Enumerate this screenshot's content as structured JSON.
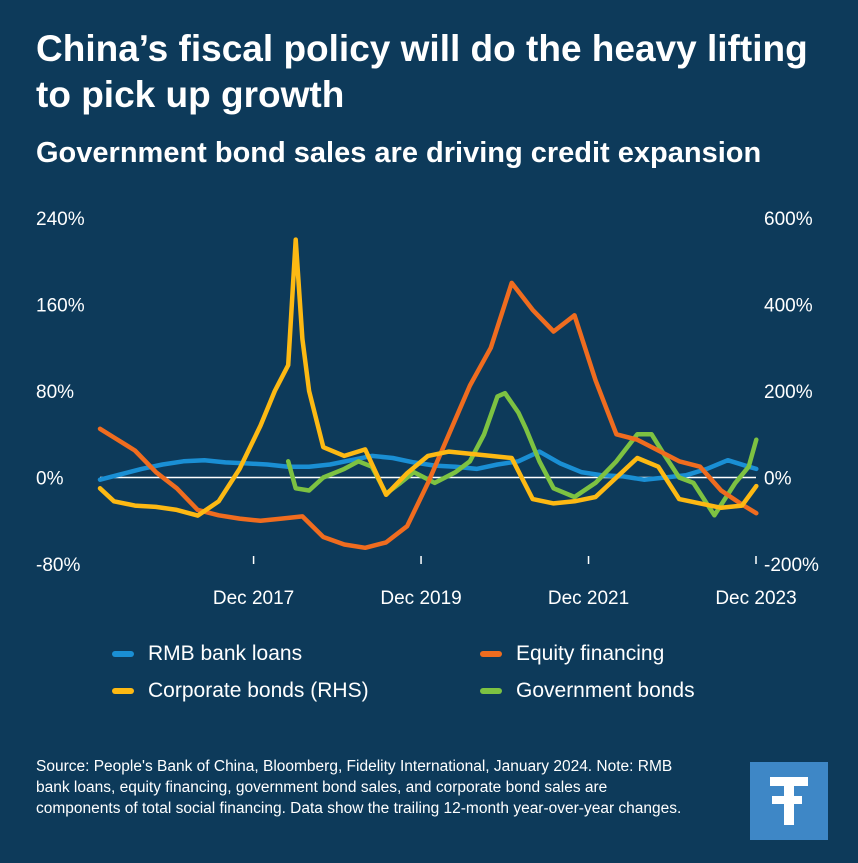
{
  "header": {
    "title": "China’s fiscal policy will do the heavy lifting to pick up growth",
    "subtitle": "Government bond sales are driving credit expansion"
  },
  "footer": {
    "source": "Source: People's Bank of China, Bloomberg, Fidelity International, January 2024. Note: RMB bank loans, equity financing, government bond sales, and corporate bond sales are components of total social financing. Data show the trailing 12-month year-over-year changes."
  },
  "logo": {
    "icon": "fidelity-f-icon",
    "color": "#3e87c6"
  },
  "chart_data": {
    "type": "line",
    "x_tick_labels": [
      "Dec 2017",
      "Dec 2019",
      "Dec 2021",
      "Dec 2023"
    ],
    "x_tick_dates": [
      2017.917,
      2019.917,
      2021.917,
      2023.917
    ],
    "x_range": [
      2016.083,
      2023.917
    ],
    "y_left": {
      "ticks": [
        240,
        160,
        80,
        0,
        -80
      ],
      "tick_labels": [
        "240%",
        "160%",
        "80%",
        "0%",
        "-80%"
      ],
      "ylim": [
        -80,
        240
      ]
    },
    "y_right": {
      "ticks": [
        600,
        400,
        200,
        0,
        -200
      ],
      "tick_labels": [
        "600%",
        "400%",
        "200%",
        "0%",
        "-200%"
      ],
      "ylim": [
        -200,
        600
      ]
    },
    "zero_line": true,
    "series": [
      {
        "name": "RMB bank loans",
        "axis": "left",
        "color": "#1a8fd4",
        "x": [
          2016.083,
          2016.33,
          2016.58,
          2016.83,
          2017.08,
          2017.33,
          2017.58,
          2017.83,
          2018.08,
          2018.33,
          2018.58,
          2018.83,
          2019.08,
          2019.33,
          2019.58,
          2019.83,
          2020.08,
          2020.33,
          2020.58,
          2020.83,
          2021.08,
          2021.33,
          2021.58,
          2021.83,
          2022.08,
          2022.33,
          2022.58,
          2022.83,
          2023.08,
          2023.33,
          2023.58,
          2023.83,
          2023.92
        ],
        "y": [
          -2,
          3,
          8,
          12,
          15,
          16,
          14,
          13,
          12,
          10,
          10,
          12,
          16,
          20,
          18,
          14,
          11,
          10,
          8,
          12,
          15,
          24,
          13,
          5,
          2,
          1,
          -2,
          0,
          2,
          8,
          16,
          10,
          8
        ]
      },
      {
        "name": "Equity financing",
        "axis": "left",
        "color": "#ef6c1f",
        "x": [
          2016.083,
          2016.25,
          2016.5,
          2016.75,
          2017.0,
          2017.25,
          2017.5,
          2017.75,
          2018.0,
          2018.25,
          2018.5,
          2018.75,
          2019.0,
          2019.25,
          2019.5,
          2019.75,
          2020.0,
          2020.25,
          2020.5,
          2020.75,
          2021.0,
          2021.25,
          2021.5,
          2021.75,
          2022.0,
          2022.25,
          2022.5,
          2022.75,
          2023.0,
          2023.25,
          2023.5,
          2023.75,
          2023.92
        ],
        "y": [
          45,
          37,
          25,
          5,
          -10,
          -30,
          -35,
          -38,
          -40,
          -38,
          -36,
          -55,
          -62,
          -65,
          -60,
          -45,
          -5,
          40,
          85,
          120,
          180,
          155,
          135,
          150,
          90,
          40,
          35,
          25,
          15,
          10,
          -12,
          -25,
          -33
        ]
      },
      {
        "name": "Corporate bonds (RHS)",
        "axis": "right",
        "color": "#fdb913",
        "x": [
          2016.083,
          2016.25,
          2016.5,
          2016.75,
          2017.0,
          2017.25,
          2017.5,
          2017.75,
          2018.0,
          2018.17,
          2018.33,
          2018.42,
          2018.5,
          2018.58,
          2018.75,
          2019.0,
          2019.25,
          2019.5,
          2019.75,
          2020.0,
          2020.25,
          2020.5,
          2020.75,
          2021.0,
          2021.25,
          2021.5,
          2021.75,
          2022.0,
          2022.25,
          2022.5,
          2022.75,
          2023.0,
          2023.25,
          2023.5,
          2023.75,
          2023.92
        ],
        "y": [
          -25,
          -55,
          -65,
          -68,
          -75,
          -88,
          -55,
          20,
          120,
          200,
          260,
          550,
          320,
          200,
          70,
          50,
          65,
          -40,
          10,
          50,
          60,
          55,
          50,
          45,
          -50,
          -60,
          -55,
          -45,
          0,
          45,
          25,
          -50,
          -60,
          -70,
          -65,
          -20
        ]
      },
      {
        "name": "Government bonds",
        "axis": "left",
        "color": "#7dc242",
        "x": [
          2018.33,
          2018.42,
          2018.58,
          2018.75,
          2019.0,
          2019.17,
          2019.33,
          2019.5,
          2019.67,
          2019.83,
          2020.08,
          2020.33,
          2020.5,
          2020.67,
          2020.83,
          2020.92,
          2021.08,
          2021.17,
          2021.33,
          2021.5,
          2021.75,
          2022.0,
          2022.25,
          2022.5,
          2022.67,
          2022.83,
          2023.0,
          2023.17,
          2023.42,
          2023.67,
          2023.83,
          2023.92
        ],
        "y": [
          15,
          -10,
          -12,
          0,
          8,
          15,
          10,
          -15,
          -5,
          5,
          -5,
          5,
          15,
          40,
          75,
          78,
          60,
          45,
          15,
          -10,
          -18,
          -5,
          15,
          40,
          40,
          20,
          0,
          -5,
          -35,
          -5,
          10,
          35
        ]
      }
    ]
  }
}
